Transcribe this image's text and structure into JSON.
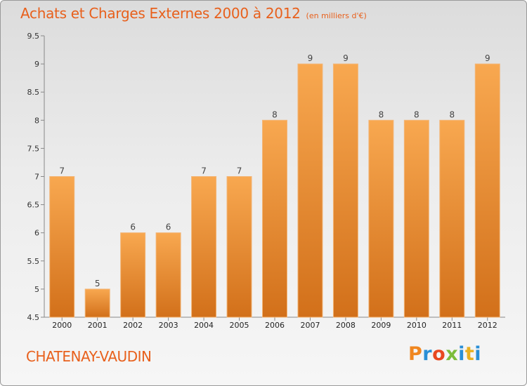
{
  "header": {
    "title": "Achats et Charges Externes 2000 à 2012",
    "subtitle": "(en milliers d'€)"
  },
  "footer": {
    "commune": "CHATENAY-VAUDIN",
    "logo_text": "Proxiti",
    "logo_colors": [
      "#f0861f",
      "#2a8fd6",
      "#e84820",
      "#7cbc3a",
      "#2a8fd6",
      "#e8b020",
      "#2a8fd6"
    ]
  },
  "colors": {
    "bar_light": "#f8a850",
    "bar_dark": "#d2701a",
    "accent": "#e8601c"
  },
  "chart_data": {
    "type": "bar",
    "categories": [
      "2000",
      "2001",
      "2002",
      "2003",
      "2004",
      "2005",
      "2006",
      "2007",
      "2008",
      "2009",
      "2010",
      "2011",
      "2012"
    ],
    "values": [
      7,
      5,
      6,
      6,
      7,
      7,
      8,
      9,
      9,
      8,
      8,
      8,
      9
    ],
    "data_labels": [
      "7",
      "5",
      "6",
      "6",
      "7",
      "7",
      "8",
      "9",
      "9",
      "8",
      "8",
      "8",
      "9"
    ],
    "title": "Achats et Charges Externes 2000 à 2012",
    "ylim": [
      4.5,
      9.5
    ],
    "yticks": [
      4.5,
      5,
      5.5,
      6,
      6.5,
      7,
      7.5,
      8,
      8.5,
      9,
      9.5
    ],
    "ytick_labels": [
      "4.5",
      "5",
      "5.5",
      "6",
      "6.5",
      "7",
      "7.5",
      "8",
      "8.5",
      "9",
      "9.5"
    ],
    "grid": false,
    "legend": "none"
  }
}
